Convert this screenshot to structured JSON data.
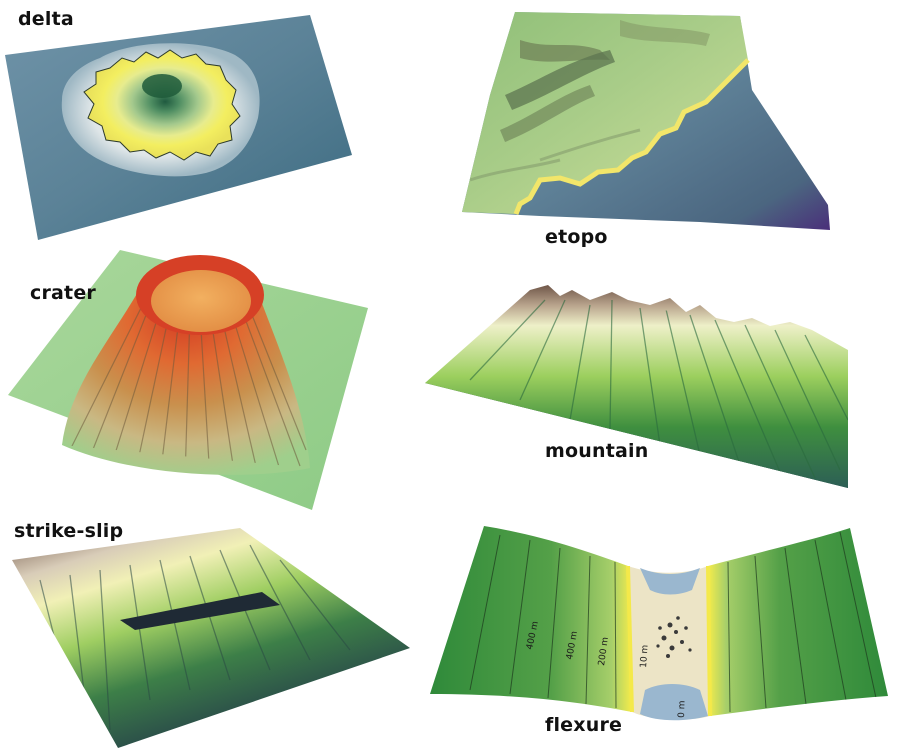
{
  "labels": {
    "delta": "delta",
    "etopo": "etopo",
    "crater": "crater",
    "mountain": "mountain",
    "strike_slip": "strike-slip",
    "flexure": "flexure"
  },
  "flexure_contours": {
    "c400a": "400 m",
    "c400b": "400 m",
    "c200": "200 m",
    "c10": "10 m",
    "c0": "0 m"
  },
  "colors": {
    "water_dark": "#3d6680",
    "water_light": "#8fb0c2",
    "sand": "#f1ea6a",
    "forest": "#3f8a3e",
    "grass": "#a9d28d",
    "rock": "#7c5c4c",
    "lava": "#d63a1f"
  }
}
